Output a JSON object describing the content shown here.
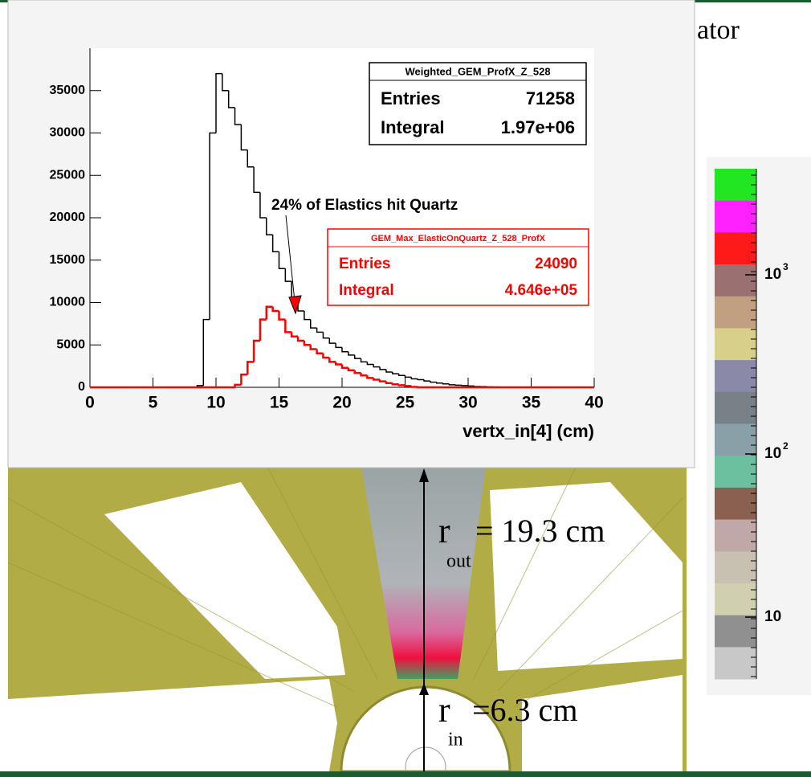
{
  "chart_data": {
    "type": "histogram",
    "x_label": "vertx_in[4] (cm)",
    "annotation": "24% of Elastics hit Quartz",
    "bins": [
      0,
      0.5,
      1,
      1.5,
      2,
      2.5,
      3,
      3.5,
      4,
      4.5,
      5,
      5.5,
      6,
      6.5,
      7,
      7.5,
      8,
      8.5,
      9,
      9.5,
      10,
      10.5,
      11,
      11.5,
      12,
      12.5,
      13,
      13.5,
      14,
      14.5,
      15,
      15.5,
      16,
      16.5,
      17,
      17.5,
      18,
      18.5,
      19,
      19.5,
      20,
      20.5,
      21,
      21.5,
      22,
      22.5,
      23,
      23.5,
      24,
      24.5,
      25,
      25.5,
      26,
      26.5,
      27,
      27.5,
      28,
      28.5,
      29,
      29.5,
      30,
      30.5,
      31,
      31.5,
      32,
      32.5,
      33,
      33.5,
      34,
      34.5,
      35,
      35.5,
      36,
      36.5,
      37,
      37.5,
      38,
      38.5,
      39,
      39.5,
      40
    ],
    "series": [
      {
        "name": "Weighted_GEM_ProfX_Z_528",
        "color": "#000000",
        "stats": {
          "entries_label": "Entries",
          "entries": "71258",
          "integral_label": "Integral",
          "integral": "1.97e+06"
        },
        "values": [
          0,
          0,
          0,
          0,
          0,
          0,
          0,
          0,
          0,
          0,
          0,
          0,
          0,
          0,
          0,
          0,
          0,
          200,
          8000,
          30000,
          37000,
          35000,
          33000,
          31000,
          28000,
          26000,
          23000,
          20000,
          18000,
          16000,
          14000,
          12500,
          10500,
          9000,
          8000,
          7000,
          6500,
          5800,
          5200,
          4700,
          4200,
          3800,
          3400,
          3000,
          2700,
          2400,
          2100,
          1800,
          1600,
          1400,
          1200,
          1000,
          900,
          750,
          600,
          500,
          400,
          300,
          250,
          200,
          150,
          100,
          80,
          50,
          30,
          20,
          10,
          0,
          0,
          0,
          0,
          0,
          0,
          0,
          0,
          0,
          0,
          0,
          0,
          0
        ]
      },
      {
        "name": "GEM_Max_ElasticOnQuartz_Z_528_ProfX",
        "color": "#ff0000",
        "stats": {
          "entries_label": "Entries",
          "entries": "24090",
          "integral_label": "Integral",
          "integral": "4.646e+05"
        },
        "values": [
          0,
          0,
          0,
          0,
          0,
          0,
          0,
          0,
          0,
          0,
          0,
          0,
          0,
          0,
          0,
          0,
          0,
          0,
          0,
          0,
          0,
          0,
          0,
          300,
          1500,
          3000,
          5500,
          8000,
          9500,
          9000,
          8000,
          6500,
          6000,
          5500,
          5000,
          4500,
          4000,
          3500,
          3000,
          2700,
          2300,
          2000,
          1700,
          1400,
          1100,
          900,
          700,
          500,
          350,
          250,
          150,
          50,
          0,
          0,
          0,
          0,
          0,
          0,
          0,
          0,
          0,
          0,
          0,
          0,
          0,
          0,
          0,
          0,
          0,
          0,
          0,
          0,
          0,
          0,
          0,
          0,
          0,
          0,
          0,
          0
        ]
      }
    ],
    "xlim": [
      0,
      40
    ],
    "xticks": [
      0,
      5,
      10,
      15,
      20,
      25,
      30,
      35,
      40
    ],
    "ylim": [
      0,
      40000
    ],
    "yticks": [
      0,
      5000,
      10000,
      15000,
      20000,
      25000,
      30000,
      35000
    ]
  },
  "slide": {
    "title_fragment": "ator",
    "r_out": {
      "symbol": "r",
      "subscript": "out",
      "value": "= 19.3 cm"
    },
    "r_in": {
      "symbol": "r",
      "subscript": "in",
      "value": "=6.3 cm"
    }
  },
  "color_scale": {
    "labels": [
      {
        "base": "10",
        "exponent": "3"
      },
      {
        "base": "10",
        "exponent": "2"
      },
      {
        "base": "10"
      }
    ]
  }
}
